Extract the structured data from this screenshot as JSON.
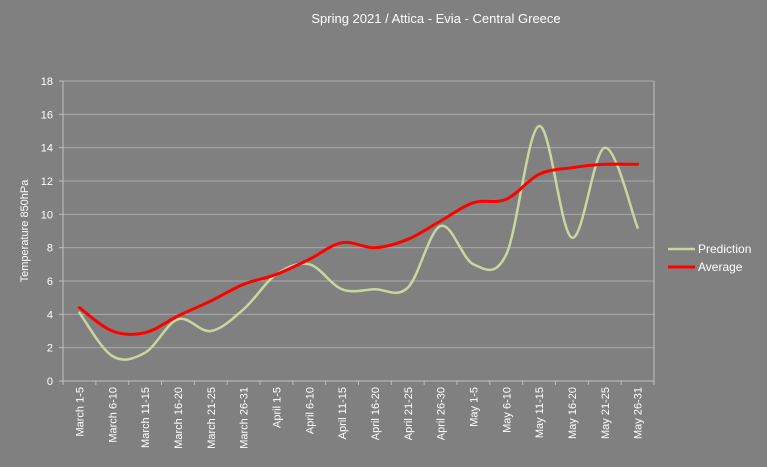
{
  "chart_data": {
    "type": "line",
    "title": "Spring 2021 / Attica - Evia - Central Greece",
    "ylabel": "Temperature 850hPa",
    "xlabel": "",
    "ylim": [
      0,
      18
    ],
    "yticks": [
      "0",
      "2",
      "4",
      "6",
      "8",
      "10",
      "12",
      "14",
      "16",
      "18"
    ],
    "grid": true,
    "legend_position": "right",
    "categories": [
      "March 1-5",
      "March 6-10",
      "March 11-15",
      "March 16-20",
      "March 21-25",
      "March 26-31",
      "April 1-5",
      "April 6-10",
      "April 11-15",
      "April 16-20",
      "April 21-25",
      "April 26-30",
      "May 1-5",
      "May 6-10",
      "May 11-15",
      "May 16-20",
      "May 21-25",
      "May 26-31"
    ],
    "series": [
      {
        "name": "Prediction",
        "color": "#c8d7a0",
        "values": [
          4.1,
          1.5,
          1.7,
          3.7,
          3.0,
          4.3,
          6.4,
          7.0,
          5.5,
          5.5,
          5.6,
          9.3,
          7.0,
          7.6,
          15.3,
          8.6,
          14.0,
          9.2
        ]
      },
      {
        "name": "Average",
        "color": "#ff0000",
        "values": [
          4.4,
          3.0,
          2.9,
          3.9,
          4.8,
          5.8,
          6.4,
          7.3,
          8.3,
          8.0,
          8.5,
          9.6,
          10.7,
          10.9,
          12.4,
          12.8,
          13.0,
          13.0
        ]
      }
    ]
  }
}
